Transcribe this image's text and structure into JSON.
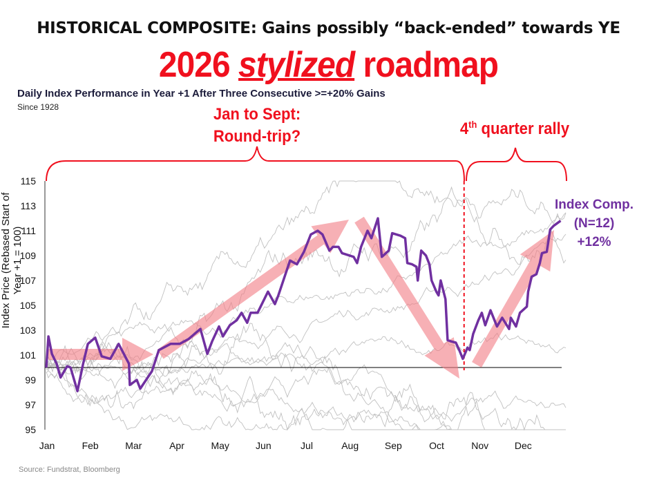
{
  "header": {
    "headline": "HISTORICAL COMPOSITE: Gains possibly “back-ended” towards YE",
    "big_title_pre": "2026 ",
    "big_title_em": "stylized",
    "big_title_post": " roadmap"
  },
  "annotations": {
    "jan_sept_line1": "Jan to Sept:",
    "jan_sept_line2": "Round-trip?",
    "q4_pre": "4",
    "q4_sup": "th",
    "q4_post": " quarter rally",
    "composite_line1": "Index Comp.",
    "composite_line2": "(N=12)",
    "composite_line3": "+12%"
  },
  "source": "Source: Fundstrat, Bloomberg",
  "colors": {
    "composite": "#7030a0",
    "annotation": "#f0101e",
    "arrow": "#f27c84",
    "history": "#c0c0c0",
    "baseline": "#000000"
  },
  "chart_data": {
    "type": "line",
    "title": "Daily Index Performance in Year +1 After Three Consecutive >=+20% Gains",
    "subtitle": "Since 1928",
    "xlabel": "",
    "ylabel": "Index Price (Rebased Start of Year +1 = 100)",
    "x_ticks": [
      "Jan",
      "Feb",
      "Mar",
      "Apr",
      "May",
      "Jun",
      "Jul",
      "Aug",
      "Sep",
      "Oct",
      "Nov",
      "Dec"
    ],
    "x_unit": "month (0 = start of Jan)",
    "xlim": [
      0,
      12
    ],
    "ylim": [
      95,
      115
    ],
    "y_ticks": [
      95,
      97,
      99,
      101,
      103,
      105,
      107,
      109,
      111,
      113,
      115
    ],
    "baseline": 100,
    "grid": false,
    "q4_marker_month": 9.65,
    "series": [
      {
        "name": "Index Comp. (N=12)",
        "x": [
          0,
          0.05,
          0.13,
          0.24,
          0.33,
          0.48,
          0.56,
          0.72,
          0.85,
          0.96,
          1.13,
          1.28,
          1.48,
          1.67,
          1.91,
          1.93,
          2.09,
          2.17,
          2.44,
          2.6,
          2.87,
          3.08,
          3.29,
          3.56,
          3.72,
          3.83,
          3.99,
          4.08,
          4.24,
          4.4,
          4.51,
          4.64,
          4.72,
          4.88,
          5.12,
          5.28,
          5.36,
          5.63,
          5.79,
          5.95,
          6.11,
          6.27,
          6.38,
          6.54,
          6.62,
          6.75,
          6.83,
          7.1,
          7.18,
          7.27,
          7.42,
          7.51,
          7.66,
          7.75,
          7.91,
          7.99,
          8.18,
          8.29,
          8.34,
          8.45,
          8.55,
          8.58,
          8.66,
          8.77,
          8.85,
          8.9,
          9.01,
          9.06,
          9.11,
          9.22,
          9.27,
          9.35,
          9.46,
          9.54,
          9.62,
          9.73,
          9.78,
          9.86,
          9.98,
          10.06,
          10.14,
          10.26,
          10.41,
          10.53,
          10.69,
          10.73,
          10.85,
          10.94,
          11.1,
          11.13,
          11.21,
          11.32,
          11.4,
          11.45,
          11.56,
          11.64,
          11.72,
          11.88
        ],
        "y": [
          100,
          102.5,
          101.1,
          100.3,
          99.2,
          100.1,
          100,
          98.1,
          100.3,
          101.9,
          102.4,
          100.9,
          100.7,
          101.9,
          100.3,
          98.6,
          99,
          98.3,
          99.7,
          101.4,
          101.9,
          101.9,
          102.3,
          103.1,
          101.1,
          102.1,
          103.3,
          102.5,
          103.4,
          103.8,
          104.4,
          103.6,
          104.4,
          104.4,
          106.1,
          105.1,
          105.8,
          108.6,
          108.3,
          109.3,
          110.7,
          111,
          110.7,
          109.4,
          109.7,
          109.7,
          109.2,
          108.9,
          108.4,
          109.7,
          111,
          110.4,
          112,
          108.9,
          109.4,
          110.8,
          110.6,
          110.4,
          108.4,
          108.3,
          108.1,
          107,
          109.4,
          109,
          108.3,
          107,
          106.1,
          105.8,
          107,
          105.5,
          102.2,
          102.1,
          102,
          101.4,
          100.7,
          101.6,
          101.4,
          102.7,
          103.8,
          104.4,
          103.4,
          104.6,
          103.3,
          104,
          103.1,
          104,
          103.3,
          104.4,
          104.9,
          106.1,
          107.3,
          107.5,
          108.4,
          109.2,
          109.3,
          111.1,
          111.4,
          111.8
        ]
      }
    ]
  }
}
